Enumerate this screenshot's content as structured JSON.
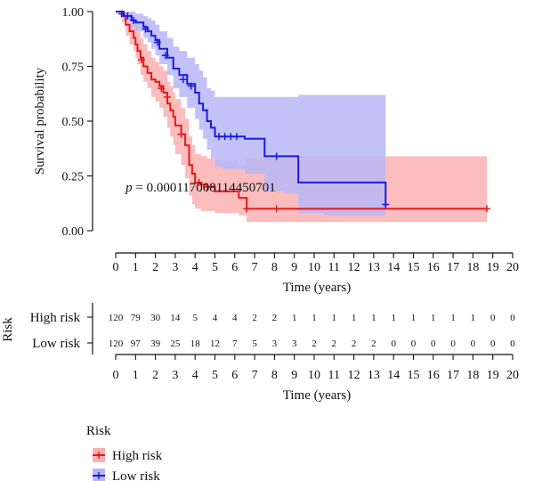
{
  "colors": {
    "high": "#e31a1c",
    "high_band": "#f9b0b0",
    "low": "#1a1ae0",
    "low_band": "#b7b7f7"
  },
  "chart_data": [
    {
      "type": "line",
      "subtype": "kaplan-meier",
      "title": "",
      "xlabel": "Time (years)",
      "ylabel": "Survival probability",
      "xlim": [
        0,
        20
      ],
      "ylim": [
        0,
        1
      ],
      "x_ticks": [
        0,
        1,
        2,
        3,
        4,
        5,
        6,
        7,
        8,
        9,
        10,
        11,
        12,
        13,
        14,
        15,
        16,
        17,
        18,
        19,
        20
      ],
      "y_ticks": [
        0.0,
        0.25,
        0.5,
        0.75,
        1.0
      ],
      "y_tick_labels": [
        "0.00",
        "0.25",
        "0.50",
        "0.75",
        "1.00"
      ],
      "grid": false,
      "annotation": {
        "italic": "p",
        "text": " = 0.000117008114450701",
        "x": 0.5,
        "y": 0.2
      },
      "series": [
        {
          "name": "High risk",
          "color_key": "high",
          "x": [
            0,
            0.3,
            0.5,
            0.7,
            0.9,
            1.0,
            1.1,
            1.25,
            1.4,
            1.6,
            1.8,
            2.0,
            2.2,
            2.4,
            2.6,
            2.75,
            2.9,
            3.0,
            3.3,
            3.5,
            3.7,
            3.85,
            4.0,
            4.3,
            4.6,
            5.0,
            5.6,
            6.2,
            6.6,
            8.1,
            13.6,
            18.7
          ],
          "y": [
            1.0,
            0.98,
            0.94,
            0.91,
            0.88,
            0.85,
            0.82,
            0.79,
            0.75,
            0.72,
            0.69,
            0.68,
            0.66,
            0.63,
            0.58,
            0.55,
            0.52,
            0.48,
            0.44,
            0.39,
            0.3,
            0.26,
            0.22,
            0.21,
            0.2,
            0.18,
            0.18,
            0.15,
            0.1,
            0.1,
            0.1,
            0.1
          ],
          "ci_lower": [
            1.0,
            0.95,
            0.89,
            0.85,
            0.82,
            0.79,
            0.76,
            0.71,
            0.68,
            0.65,
            0.61,
            0.59,
            0.56,
            0.52,
            0.47,
            0.43,
            0.39,
            0.35,
            0.3,
            0.24,
            0.16,
            0.12,
            0.1,
            0.09,
            0.09,
            0.08,
            0.08,
            0.07,
            0.04,
            0.04,
            0.04,
            0.04
          ],
          "ci_upper": [
            1.0,
            1.0,
            1.0,
            0.99,
            0.96,
            0.94,
            0.91,
            0.88,
            0.85,
            0.82,
            0.79,
            0.77,
            0.75,
            0.73,
            0.68,
            0.66,
            0.63,
            0.6,
            0.56,
            0.51,
            0.43,
            0.39,
            0.35,
            0.34,
            0.33,
            0.32,
            0.32,
            0.3,
            0.33,
            0.34,
            0.34,
            0.34
          ],
          "censor_x": [
            1.3,
            2.3,
            2.6,
            3.3,
            4.2,
            4.6,
            6.6,
            8.1,
            18.7
          ],
          "censor_y": [
            0.78,
            0.65,
            0.61,
            0.44,
            0.22,
            0.2,
            0.1,
            0.1,
            0.1
          ]
        },
        {
          "name": "Low risk",
          "color_key": "low",
          "x": [
            0,
            0.4,
            0.8,
            1.0,
            1.4,
            1.6,
            1.8,
            2.0,
            2.2,
            2.6,
            2.9,
            3.2,
            3.6,
            4.0,
            4.2,
            4.4,
            4.6,
            4.8,
            5.0,
            5.4,
            6.5,
            7.5,
            8.5,
            9.2,
            10.5,
            13.6
          ],
          "y": [
            1.0,
            0.98,
            0.96,
            0.95,
            0.93,
            0.91,
            0.89,
            0.87,
            0.83,
            0.79,
            0.74,
            0.71,
            0.67,
            0.63,
            0.58,
            0.55,
            0.5,
            0.47,
            0.43,
            0.43,
            0.42,
            0.34,
            0.34,
            0.22,
            0.22,
            0.11
          ],
          "ci_lower": [
            1.0,
            0.96,
            0.93,
            0.91,
            0.88,
            0.86,
            0.83,
            0.8,
            0.76,
            0.71,
            0.65,
            0.61,
            0.56,
            0.51,
            0.46,
            0.42,
            0.37,
            0.33,
            0.29,
            0.28,
            0.26,
            0.18,
            0.17,
            0.08,
            0.07,
            0.01
          ],
          "ci_upper": [
            1.0,
            1.0,
            1.0,
            0.99,
            0.98,
            0.97,
            0.96,
            0.94,
            0.91,
            0.88,
            0.84,
            0.82,
            0.79,
            0.76,
            0.73,
            0.7,
            0.65,
            0.64,
            0.61,
            0.61,
            0.61,
            0.61,
            0.61,
            0.62,
            0.62,
            0.62
          ],
          "censor_x": [
            0.3,
            0.6,
            0.9,
            1.5,
            2.1,
            2.5,
            3.4,
            3.8,
            5.2,
            5.5,
            5.8,
            6.1,
            8.1,
            13.6
          ],
          "censor_y": [
            0.99,
            0.98,
            0.96,
            0.92,
            0.86,
            0.8,
            0.69,
            0.66,
            0.43,
            0.43,
            0.43,
            0.43,
            0.34,
            0.12
          ]
        }
      ]
    },
    {
      "type": "table",
      "subtype": "risk-table",
      "ylabel": "Risk",
      "xlabel": "Time (years)",
      "x_ticks": [
        0,
        1,
        2,
        3,
        4,
        5,
        6,
        7,
        8,
        9,
        10,
        11,
        12,
        13,
        14,
        15,
        16,
        17,
        18,
        19,
        20
      ],
      "rows": [
        {
          "name": "High risk",
          "color_key": "high",
          "values": [
            120,
            79,
            30,
            14,
            5,
            4,
            4,
            2,
            2,
            1,
            1,
            1,
            1,
            1,
            1,
            1,
            1,
            1,
            1,
            0,
            0
          ]
        },
        {
          "name": "Low risk",
          "color_key": "low",
          "values": [
            120,
            97,
            39,
            25,
            18,
            12,
            7,
            5,
            3,
            3,
            2,
            2,
            2,
            2,
            0,
            0,
            0,
            0,
            0,
            0,
            0
          ]
        }
      ]
    }
  ],
  "legend": {
    "title": "Risk",
    "items": [
      {
        "label": "High risk",
        "color_key": "high"
      },
      {
        "label": "Low risk",
        "color_key": "low"
      }
    ]
  }
}
